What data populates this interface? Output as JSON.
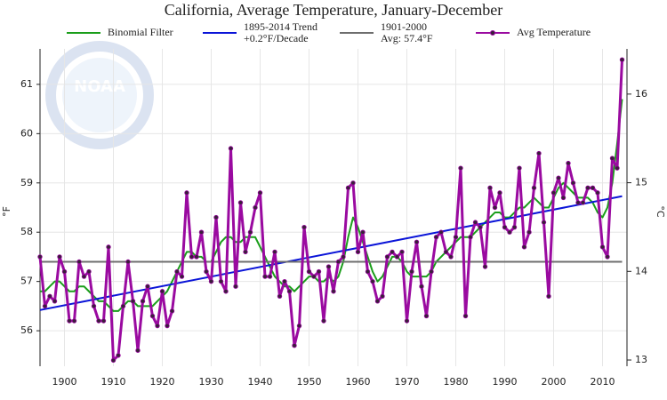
{
  "chart_data": {
    "type": "line",
    "title": "California, Average Temperature, January-December",
    "logo_text": "NOAA",
    "y_label": "°F",
    "y2_label": "°C",
    "x": [
      1895,
      1896,
      1897,
      1898,
      1899,
      1900,
      1901,
      1902,
      1903,
      1904,
      1905,
      1906,
      1907,
      1908,
      1909,
      1910,
      1911,
      1912,
      1913,
      1914,
      1915,
      1916,
      1917,
      1918,
      1919,
      1920,
      1921,
      1922,
      1923,
      1924,
      1925,
      1926,
      1927,
      1928,
      1929,
      1930,
      1931,
      1932,
      1933,
      1934,
      1935,
      1936,
      1937,
      1938,
      1939,
      1940,
      1941,
      1942,
      1943,
      1944,
      1945,
      1946,
      1947,
      1948,
      1949,
      1950,
      1951,
      1952,
      1953,
      1954,
      1955,
      1956,
      1957,
      1958,
      1959,
      1960,
      1961,
      1962,
      1963,
      1964,
      1965,
      1966,
      1967,
      1968,
      1969,
      1970,
      1971,
      1972,
      1973,
      1974,
      1975,
      1976,
      1977,
      1978,
      1979,
      1980,
      1981,
      1982,
      1983,
      1984,
      1985,
      1986,
      1987,
      1988,
      1989,
      1990,
      1991,
      1992,
      1993,
      1994,
      1995,
      1996,
      1997,
      1998,
      1999,
      2000,
      2001,
      2002,
      2003,
      2004,
      2005,
      2006,
      2007,
      2008,
      2009,
      2010,
      2011,
      2012,
      2013,
      2014
    ],
    "series": [
      {
        "name": "Binomial Filter",
        "color": "#1a9e1a",
        "values": [
          56.8,
          56.8,
          56.9,
          57.0,
          57.0,
          56.9,
          56.8,
          56.8,
          56.9,
          56.9,
          56.8,
          56.7,
          56.6,
          56.6,
          56.5,
          56.4,
          56.4,
          56.5,
          56.6,
          56.6,
          56.5,
          56.5,
          56.5,
          56.5,
          56.6,
          56.7,
          56.8,
          57.0,
          57.2,
          57.4,
          57.6,
          57.6,
          57.5,
          57.5,
          57.4,
          57.4,
          57.6,
          57.8,
          57.9,
          57.9,
          57.8,
          57.8,
          57.9,
          57.9,
          57.9,
          57.7,
          57.5,
          57.3,
          57.1,
          57.0,
          56.9,
          56.9,
          56.8,
          56.9,
          57.0,
          57.1,
          57.1,
          57.0,
          57.0,
          57.1,
          57.0,
          57.1,
          57.4,
          57.9,
          58.3,
          58.1,
          57.8,
          57.5,
          57.2,
          57.0,
          57.1,
          57.3,
          57.5,
          57.5,
          57.4,
          57.2,
          57.1,
          57.1,
          57.1,
          57.1,
          57.2,
          57.4,
          57.5,
          57.6,
          57.7,
          57.8,
          57.9,
          57.9,
          57.9,
          58.0,
          58.1,
          58.2,
          58.3,
          58.4,
          58.4,
          58.3,
          58.3,
          58.4,
          58.5,
          58.5,
          58.6,
          58.7,
          58.6,
          58.5,
          58.5,
          58.7,
          58.9,
          59.0,
          58.9,
          58.8,
          58.7,
          58.7,
          58.7,
          58.6,
          58.4,
          58.3,
          58.5,
          59.0,
          59.8,
          60.7
        ]
      },
      {
        "name": "1895-2014 Trend",
        "note": "+0.2°F/Decade",
        "color": "#0a14d8",
        "x": [
          1895,
          2014
        ],
        "values": [
          56.42,
          58.73
        ]
      },
      {
        "name": "1901-2000",
        "note": "Avg: 57.4°F",
        "color": "#6e6e6e",
        "x": [
          1895,
          2014
        ],
        "values": [
          57.4,
          57.4
        ]
      },
      {
        "name": "Avg Temperature",
        "color": "#9a0aa0",
        "marker_color": "#3a1e3a",
        "values": [
          57.5,
          56.5,
          56.7,
          56.6,
          57.5,
          57.2,
          56.2,
          56.2,
          57.4,
          57.1,
          57.2,
          56.5,
          56.2,
          56.2,
          57.7,
          55.4,
          55.5,
          56.5,
          57.4,
          56.6,
          55.6,
          56.6,
          56.9,
          56.3,
          56.1,
          56.8,
          56.1,
          56.4,
          57.2,
          57.1,
          58.8,
          57.5,
          57.5,
          58.0,
          57.2,
          57.0,
          58.3,
          57.0,
          56.8,
          59.7,
          56.9,
          58.6,
          57.6,
          58.0,
          58.5,
          58.8,
          57.1,
          57.1,
          57.6,
          56.7,
          57.0,
          56.8,
          55.7,
          56.1,
          58.1,
          57.2,
          57.1,
          57.2,
          56.2,
          57.3,
          56.8,
          57.4,
          57.5,
          58.9,
          59.0,
          57.6,
          58.0,
          57.2,
          57.0,
          56.6,
          56.7,
          57.5,
          57.6,
          57.5,
          57.6,
          56.2,
          57.2,
          57.8,
          56.9,
          56.3,
          57.2,
          57.9,
          58.0,
          57.6,
          57.5,
          57.9,
          59.3,
          56.3,
          57.9,
          58.2,
          58.1,
          57.3,
          58.9,
          58.5,
          58.8,
          58.1,
          58.0,
          58.1,
          59.3,
          57.7,
          58.0,
          58.9,
          59.6,
          58.2,
          56.7,
          58.8,
          59.1,
          58.7,
          59.4,
          59.0,
          58.6,
          58.6,
          58.9,
          58.9,
          58.8,
          57.7,
          57.5,
          59.5,
          59.3,
          61.5
        ]
      }
    ],
    "xlim": [
      1895,
      2015
    ],
    "xticks": [
      1900,
      1910,
      1920,
      1930,
      1940,
      1950,
      1960,
      1970,
      1980,
      1990,
      2000,
      2010
    ],
    "ylim": [
      55.28,
      61.72
    ],
    "yticks": [
      56,
      57,
      58,
      59,
      60,
      61
    ],
    "y2lim": [
      12.93,
      16.51
    ],
    "y2ticks": [
      13,
      14,
      15,
      16
    ],
    "grid": true
  }
}
